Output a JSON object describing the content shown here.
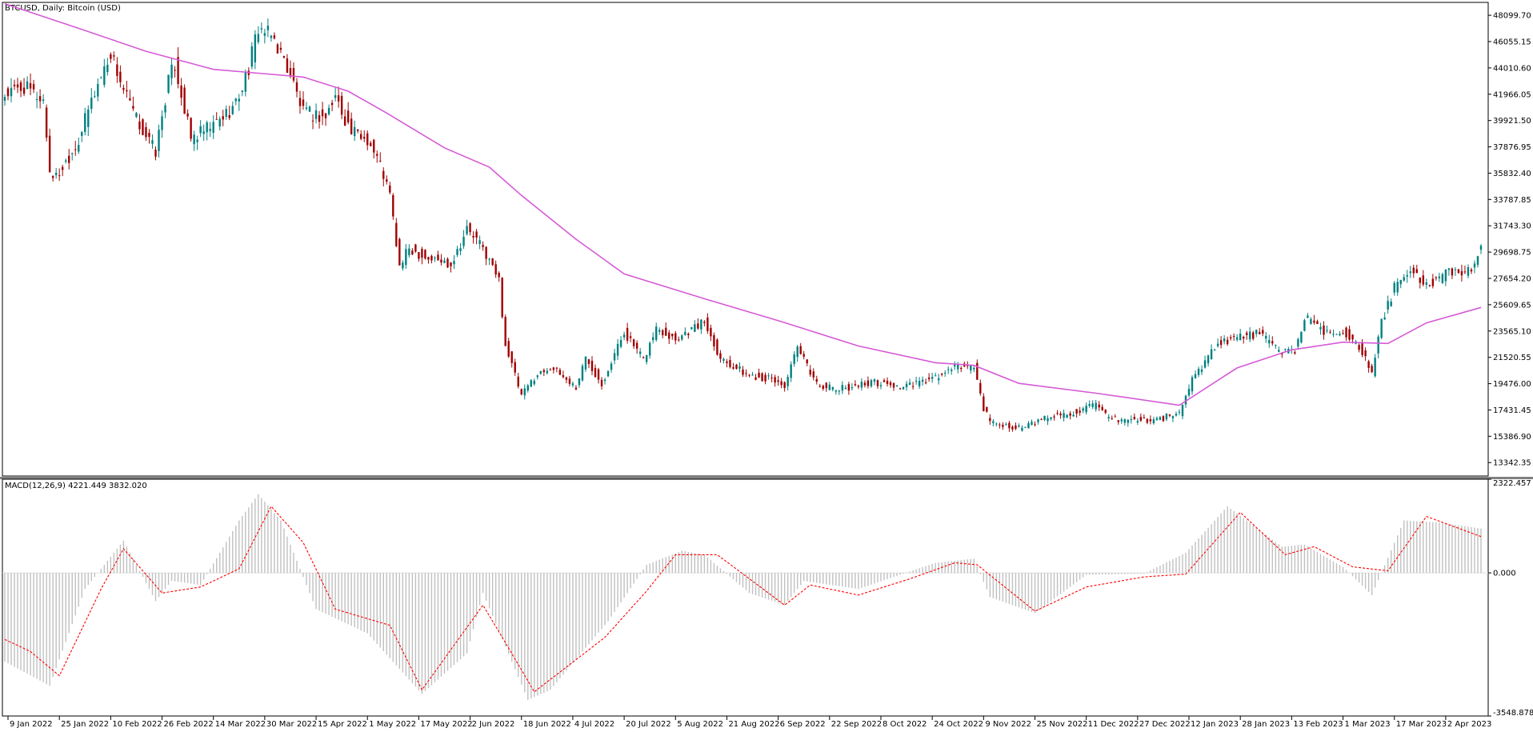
{
  "price_panel": {
    "title": "BTCUSD, Daily:  Bitcoin (USD)",
    "y_ticks": [
      "48099.70",
      "46055.15",
      "44010.60",
      "41966.05",
      "39921.50",
      "37876.95",
      "35832.40",
      "33787.85",
      "31743.30",
      "29698.75",
      "27654.20",
      "25609.65",
      "23565.10",
      "21520.55",
      "19476.00",
      "17431.45",
      "15386.90",
      "13342.35"
    ]
  },
  "macd_panel": {
    "title": "MACD(12,26,9) 4221.449 3832.020",
    "y_ticks": [
      "2322.457",
      "0.000",
      "-3548.878"
    ]
  },
  "x_ticks": [
    "9 Jan 2022",
    "25 Jan 2022",
    "10 Feb 2022",
    "26 Feb 2022",
    "14 Mar 2022",
    "30 Mar 2022",
    "15 Apr 2022",
    "1 May 2022",
    "17 May 2022",
    "2 Jun 2022",
    "18 Jun 2022",
    "4 Jul 2022",
    "20 Jul 2022",
    "5 Aug 2022",
    "21 Aug 2022",
    "6 Sep 2022",
    "22 Sep 2022",
    "8 Oct 2022",
    "24 Oct 2022",
    "9 Nov 2022",
    "25 Nov 2022",
    "11 Dec 2022",
    "27 Dec 2022",
    "12 Jan 2023",
    "28 Jan 2023",
    "13 Feb 2023",
    "1 Mar 2023",
    "17 Mar 2023",
    "2 Apr 2023"
  ],
  "colors": {
    "bull": "#008080",
    "bear": "#a00000",
    "ma": "#d65ad6",
    "histogram": "#c0c0c0",
    "signal": "#ff0000",
    "frame": "#000000",
    "separator": "#808080"
  },
  "chart_data": [
    {
      "type": "candlestick",
      "title": "BTCUSD, Daily:  Bitcoin (USD)",
      "timeframe": "Daily",
      "x_range": [
        "2022-01-08",
        "2023-04-13"
      ],
      "ylim": [
        12300,
        49100
      ],
      "price_path": [
        [
          "2022-01-08",
          41900
        ],
        [
          "2022-01-14",
          42500
        ],
        [
          "2022-01-20",
          41500
        ],
        [
          "2022-01-22",
          36000
        ],
        [
          "2022-01-24",
          35500
        ],
        [
          "2022-01-31",
          38400
        ],
        [
          "2022-02-04",
          41500
        ],
        [
          "2022-02-10",
          45200
        ],
        [
          "2022-02-14",
          42300
        ],
        [
          "2022-02-18",
          40000
        ],
        [
          "2022-02-24",
          37500
        ],
        [
          "2022-02-28",
          43000
        ],
        [
          "2022-03-02",
          44300
        ],
        [
          "2022-03-07",
          38500
        ],
        [
          "2022-03-14",
          39500
        ],
        [
          "2022-03-21",
          41200
        ],
        [
          "2022-03-25",
          44000
        ],
        [
          "2022-03-28",
          47200
        ],
        [
          "2022-04-02",
          46200
        ],
        [
          "2022-04-07",
          43500
        ],
        [
          "2022-04-11",
          40500
        ],
        [
          "2022-04-18",
          40200
        ],
        [
          "2022-04-21",
          41800
        ],
        [
          "2022-04-26",
          39000
        ],
        [
          "2022-05-01",
          38500
        ],
        [
          "2022-05-05",
          36500
        ],
        [
          "2022-05-08",
          34100
        ],
        [
          "2022-05-11",
          28500
        ],
        [
          "2022-05-14",
          30000
        ],
        [
          "2022-05-20",
          29200
        ],
        [
          "2022-05-27",
          28800
        ],
        [
          "2022-06-01",
          31500
        ],
        [
          "2022-06-06",
          30000
        ],
        [
          "2022-06-11",
          27500
        ],
        [
          "2022-06-13",
          22500
        ],
        [
          "2022-06-18",
          18500
        ],
        [
          "2022-06-22",
          20000
        ],
        [
          "2022-06-27",
          20800
        ],
        [
          "2022-07-05",
          19200
        ],
        [
          "2022-07-08",
          21500
        ],
        [
          "2022-07-13",
          19500
        ],
        [
          "2022-07-20",
          23500
        ],
        [
          "2022-07-26",
          21300
        ],
        [
          "2022-07-30",
          23800
        ],
        [
          "2022-08-05",
          23000
        ],
        [
          "2022-08-14",
          24300
        ],
        [
          "2022-08-19",
          21500
        ],
        [
          "2022-08-27",
          20200
        ],
        [
          "2022-09-04",
          19800
        ],
        [
          "2022-09-08",
          19300
        ],
        [
          "2022-09-12",
          22200
        ],
        [
          "2022-09-18",
          19500
        ],
        [
          "2022-09-24",
          19000
        ],
        [
          "2022-10-05",
          19600
        ],
        [
          "2022-10-15",
          19200
        ],
        [
          "2022-10-25",
          19900
        ],
        [
          "2022-11-01",
          20800
        ],
        [
          "2022-11-06",
          20800
        ],
        [
          "2022-11-09",
          17600
        ],
        [
          "2022-11-11",
          16500
        ],
        [
          "2022-11-21",
          16000
        ],
        [
          "2022-11-30",
          17000
        ],
        [
          "2022-12-05",
          17100
        ],
        [
          "2022-12-14",
          17800
        ],
        [
          "2022-12-18",
          16700
        ],
        [
          "2023-01-01",
          16600
        ],
        [
          "2023-01-09",
          17200
        ],
        [
          "2023-01-13",
          19800
        ],
        [
          "2023-01-21",
          22700
        ],
        [
          "2023-01-28",
          23100
        ],
        [
          "2023-02-03",
          23400
        ],
        [
          "2023-02-09",
          22000
        ],
        [
          "2023-02-14",
          22100
        ],
        [
          "2023-02-17",
          24600
        ],
        [
          "2023-02-24",
          23300
        ],
        [
          "2023-03-01",
          23600
        ],
        [
          "2023-03-06",
          22400
        ],
        [
          "2023-03-10",
          20200
        ],
        [
          "2023-03-13",
          24200
        ],
        [
          "2023-03-17",
          26900
        ],
        [
          "2023-03-22",
          28200
        ],
        [
          "2023-03-27",
          27100
        ],
        [
          "2023-04-04",
          28200
        ],
        [
          "2023-04-10",
          28300
        ],
        [
          "2023-04-13",
          30400
        ]
      ],
      "series": [
        {
          "name": "",
          "kind": "moving-average",
          "points": [
            [
              "2022-01-08",
              49000
            ],
            [
              "2022-02-01",
              47000
            ],
            [
              "2022-02-21",
              45300
            ],
            [
              "2022-03-14",
              43900
            ],
            [
              "2022-03-28",
              43600
            ],
            [
              "2022-04-11",
              43300
            ],
            [
              "2022-04-25",
              42200
            ],
            [
              "2022-05-07",
              40500
            ],
            [
              "2022-05-25",
              37800
            ],
            [
              "2022-06-08",
              36300
            ],
            [
              "2022-06-18",
              34100
            ],
            [
              "2022-07-05",
              30700
            ],
            [
              "2022-07-20",
              28000
            ],
            [
              "2022-08-15",
              26000
            ],
            [
              "2022-09-07",
              24300
            ],
            [
              "2022-10-01",
              22400
            ],
            [
              "2022-10-25",
              21100
            ],
            [
              "2022-11-06",
              20900
            ],
            [
              "2022-11-20",
              19500
            ],
            [
              "2022-12-15",
              18700
            ],
            [
              "2023-01-09",
              17800
            ],
            [
              "2023-01-27",
              20700
            ],
            [
              "2023-02-13",
              22100
            ],
            [
              "2023-03-01",
              22700
            ],
            [
              "2023-03-15",
              22600
            ],
            [
              "2023-03-27",
              24200
            ],
            [
              "2023-04-13",
              25400
            ]
          ]
        }
      ]
    },
    {
      "type": "bar",
      "title": "MACD(12,26,9) 4221.449 3832.020",
      "x_range": [
        "2022-01-08",
        "2023-04-13"
      ],
      "ylim": [
        -3548.878,
        2322.457
      ],
      "zero_line": 0.0,
      "macd_path": [
        [
          "2022-01-08",
          -2200
        ],
        [
          "2022-01-22",
          -2800
        ],
        [
          "2022-02-02",
          -400
        ],
        [
          "2022-02-14",
          800
        ],
        [
          "2022-02-24",
          -700
        ],
        [
          "2022-03-01",
          -200
        ],
        [
          "2022-03-10",
          -300
        ],
        [
          "2022-03-22",
          1300
        ],
        [
          "2022-03-28",
          1950
        ],
        [
          "2022-04-04",
          1300
        ],
        [
          "2022-04-15",
          -900
        ],
        [
          "2022-05-01",
          -1500
        ],
        [
          "2022-05-18",
          -3000
        ],
        [
          "2022-06-01",
          -2000
        ],
        [
          "2022-06-06",
          -500
        ],
        [
          "2022-06-20",
          -3150
        ],
        [
          "2022-06-27",
          -2900
        ],
        [
          "2022-07-15",
          -1200
        ],
        [
          "2022-07-27",
          200
        ],
        [
          "2022-08-07",
          550
        ],
        [
          "2022-08-14",
          450
        ],
        [
          "2022-08-28",
          -500
        ],
        [
          "2022-09-08",
          -800
        ],
        [
          "2022-09-14",
          -200
        ],
        [
          "2022-10-01",
          -400
        ],
        [
          "2022-10-25",
          250
        ],
        [
          "2022-11-06",
          350
        ],
        [
          "2022-11-11",
          -600
        ],
        [
          "2022-11-25",
          -1000
        ],
        [
          "2022-12-11",
          -50
        ],
        [
          "2022-12-29",
          -20
        ],
        [
          "2023-01-11",
          500
        ],
        [
          "2023-01-24",
          1650
        ],
        [
          "2023-02-10",
          650
        ],
        [
          "2023-02-17",
          700
        ],
        [
          "2023-03-01",
          150
        ],
        [
          "2023-03-10",
          -550
        ],
        [
          "2023-03-20",
          1300
        ],
        [
          "2023-03-31",
          1250
        ],
        [
          "2023-04-13",
          1100
        ]
      ],
      "signal_path": [
        [
          "2022-01-08",
          -1650
        ],
        [
          "2022-01-16",
          -1950
        ],
        [
          "2022-01-25",
          -2550
        ],
        [
          "2022-02-07",
          -400
        ],
        [
          "2022-02-14",
          600
        ],
        [
          "2022-02-26",
          -500
        ],
        [
          "2022-03-10",
          -350
        ],
        [
          "2022-03-22",
          100
        ],
        [
          "2022-04-01",
          1650
        ],
        [
          "2022-04-11",
          750
        ],
        [
          "2022-04-21",
          -900
        ],
        [
          "2022-05-08",
          -1300
        ],
        [
          "2022-05-18",
          -2900
        ],
        [
          "2022-06-06",
          -800
        ],
        [
          "2022-06-15",
          -2000
        ],
        [
          "2022-06-22",
          -2950
        ],
        [
          "2022-07-14",
          -1600
        ],
        [
          "2022-07-27",
          -450
        ],
        [
          "2022-08-05",
          450
        ],
        [
          "2022-08-18",
          450
        ],
        [
          "2022-09-08",
          -800
        ],
        [
          "2022-09-16",
          -300
        ],
        [
          "2022-10-01",
          -550
        ],
        [
          "2022-10-17",
          -150
        ],
        [
          "2022-10-31",
          250
        ],
        [
          "2022-11-07",
          200
        ],
        [
          "2022-11-25",
          -950
        ],
        [
          "2022-12-11",
          -350
        ],
        [
          "2022-12-29",
          -100
        ],
        [
          "2023-01-11",
          -30
        ],
        [
          "2023-01-28",
          1500
        ],
        [
          "2023-02-11",
          450
        ],
        [
          "2023-02-20",
          650
        ],
        [
          "2023-03-04",
          150
        ],
        [
          "2023-03-15",
          50
        ],
        [
          "2023-03-27",
          1400
        ],
        [
          "2023-04-13",
          900
        ]
      ]
    }
  ]
}
